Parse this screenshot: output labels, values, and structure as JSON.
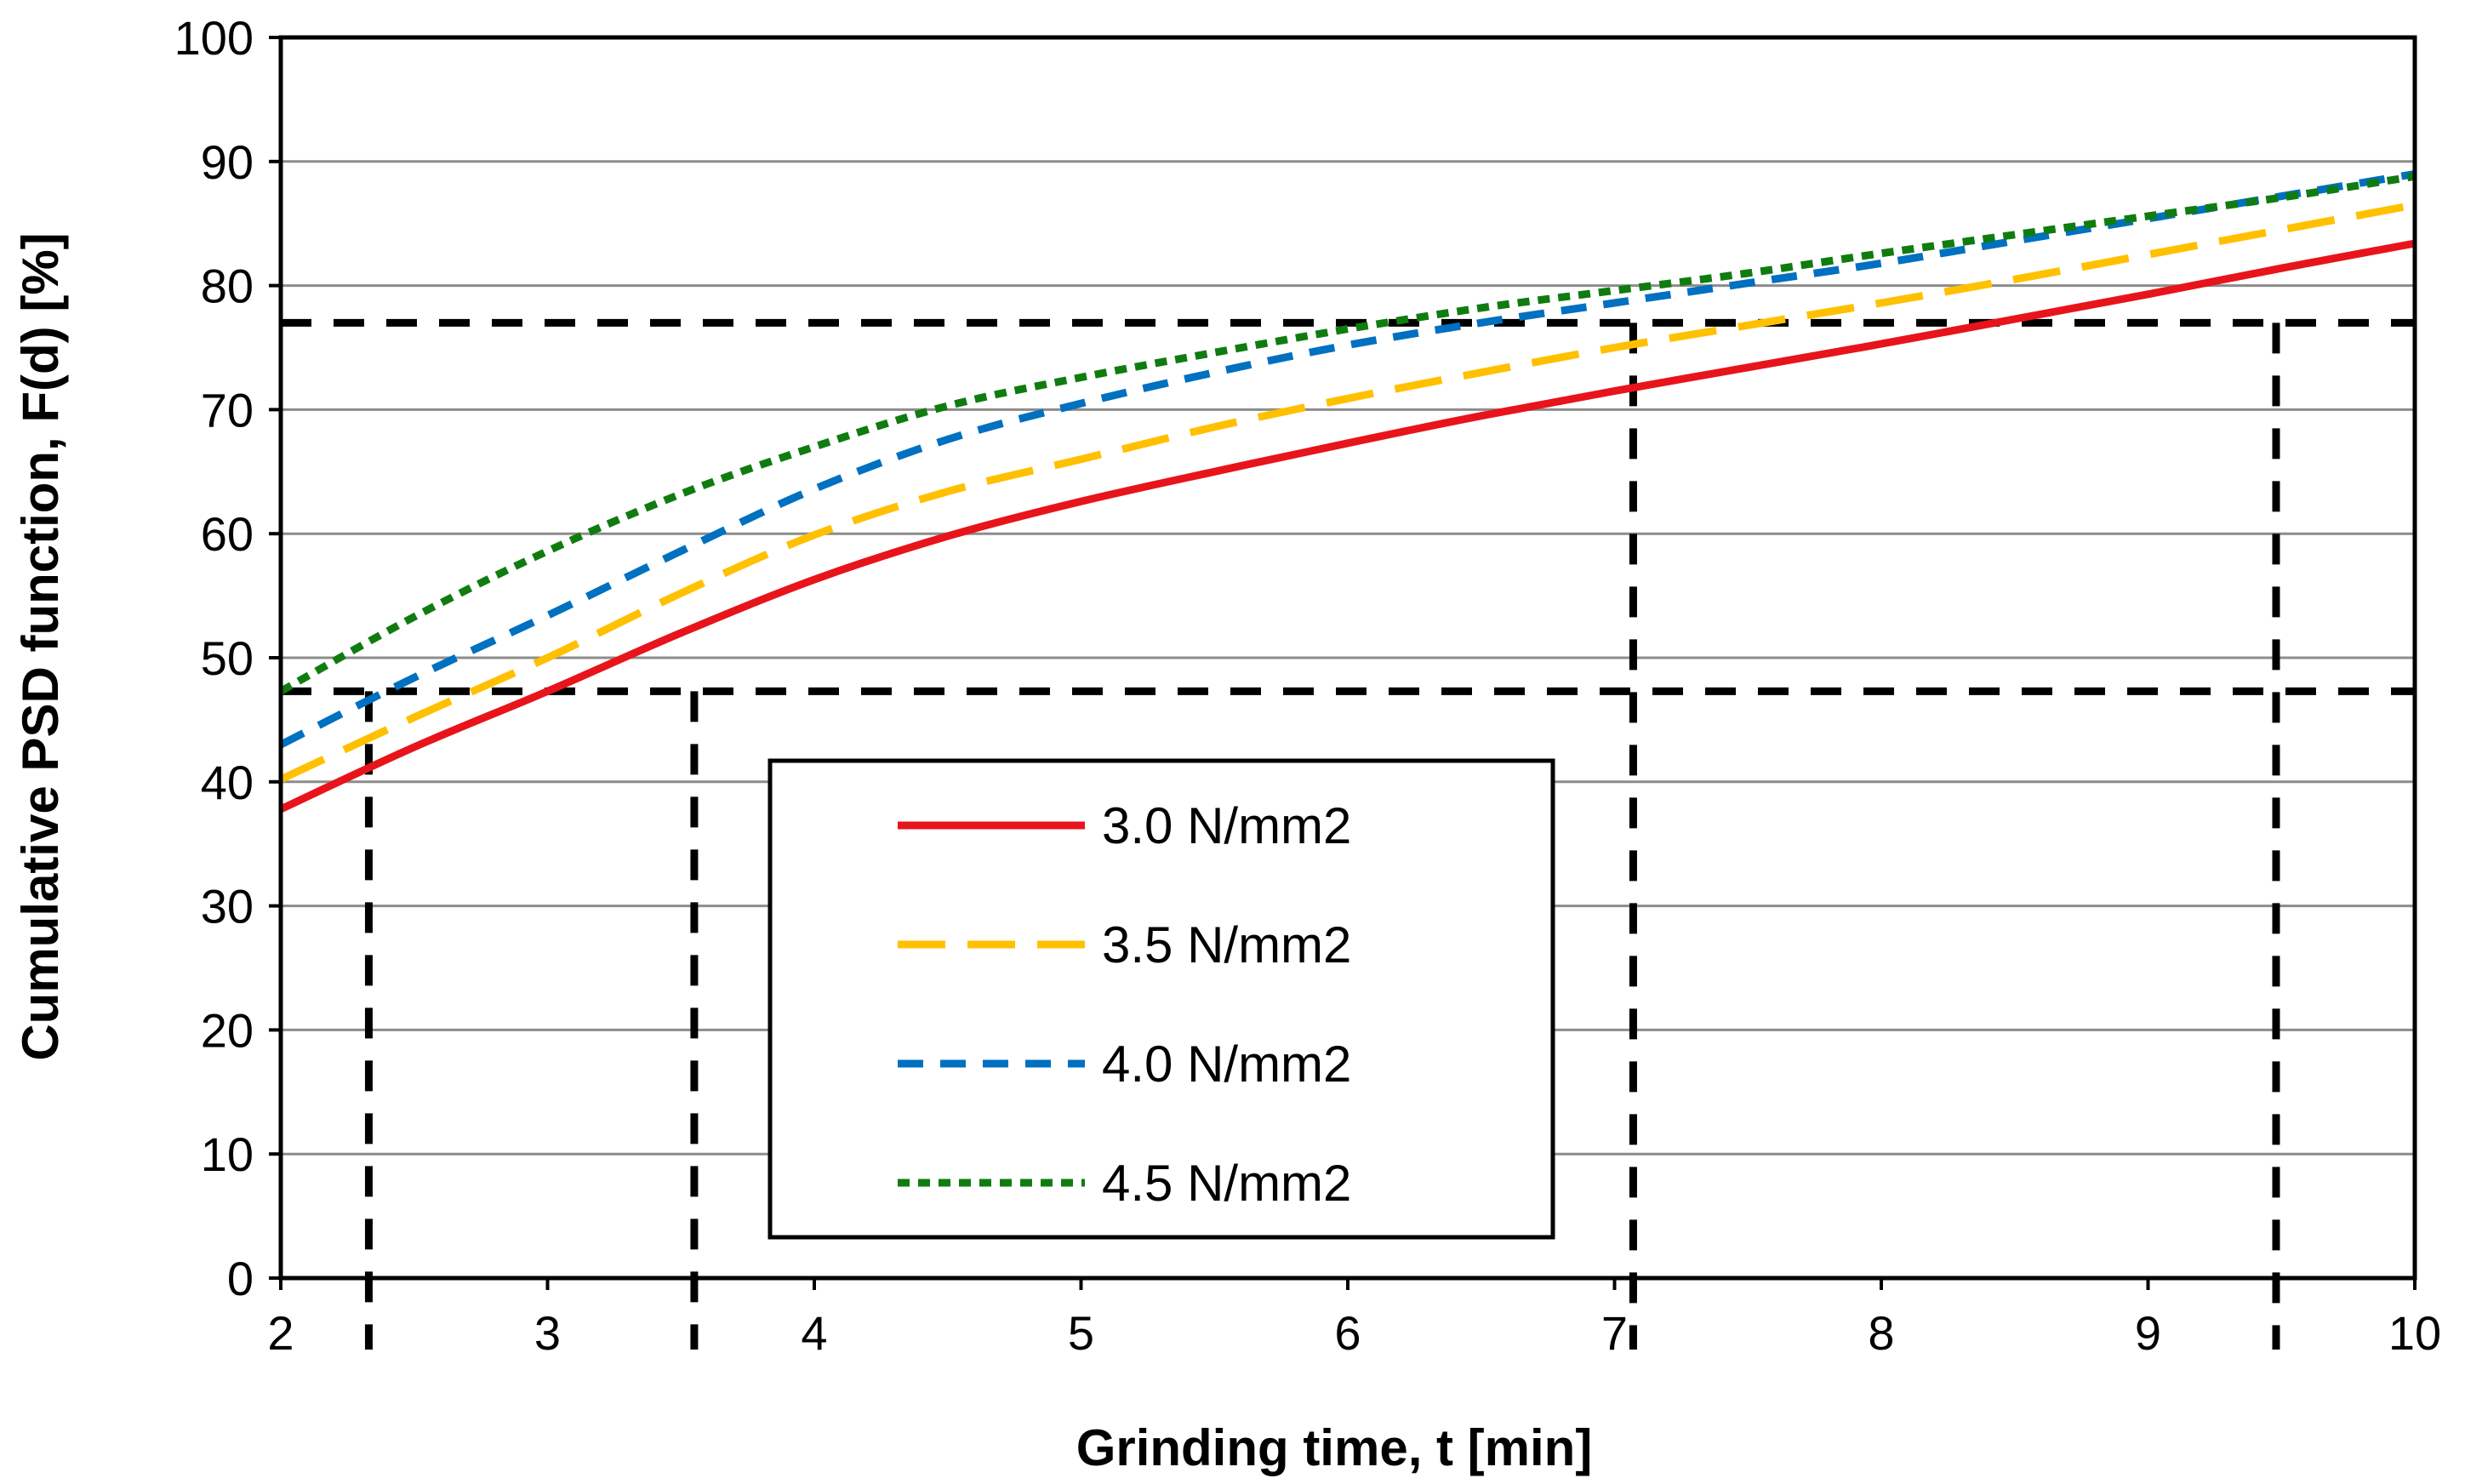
{
  "chart_data": {
    "type": "line",
    "title": "",
    "xlabel": "Grinding time, t [min]",
    "ylabel": "Cumulative PSD function, F(d) [%]",
    "xlim": [
      2,
      10
    ],
    "ylim": [
      0,
      100
    ],
    "xticks": [
      2,
      3,
      4,
      5,
      6,
      7,
      8,
      9,
      10
    ],
    "yticks": [
      0,
      10,
      20,
      30,
      40,
      50,
      60,
      70,
      80,
      90,
      100
    ],
    "grid": "horizontal",
    "legend_position": "center",
    "series": [
      {
        "name": "3.0 N/mm2",
        "color": "#e8141b",
        "style": "solid",
        "x": [
          2,
          2.5,
          3,
          3.5,
          4,
          4.5,
          5,
          5.5,
          6,
          6.5,
          7,
          7.5,
          8,
          8.5,
          9,
          9.5,
          10
        ],
        "y": [
          37.8,
          42.8,
          47.3,
          52.0,
          56.3,
          59.8,
          62.6,
          65.0,
          67.3,
          69.5,
          71.5,
          73.4,
          75.3,
          77.3,
          79.3,
          81.4,
          83.4
        ]
      },
      {
        "name": "3.5 N/mm2",
        "color": "#ffc000",
        "style": "long-dash",
        "x": [
          2,
          2.5,
          3,
          3.5,
          4,
          4.5,
          5,
          5.5,
          6,
          6.5,
          7,
          7.5,
          8,
          8.5,
          9,
          9.5,
          10
        ],
        "y": [
          40.2,
          45.2,
          50.0,
          55.2,
          59.9,
          63.4,
          66.0,
          68.6,
          70.9,
          73.0,
          75.0,
          76.8,
          78.6,
          80.5,
          82.5,
          84.5,
          86.5
        ]
      },
      {
        "name": "4.0 N/mm2",
        "color": "#0070c0",
        "style": "dash",
        "x": [
          2,
          2.5,
          3,
          3.5,
          4,
          4.5,
          5,
          5.5,
          6,
          6.5,
          7,
          7.5,
          8,
          8.5,
          9,
          9.5,
          10
        ],
        "y": [
          43.0,
          48.4,
          53.4,
          58.6,
          63.6,
          67.6,
          70.5,
          73.0,
          75.2,
          77.0,
          78.6,
          80.2,
          81.8,
          83.6,
          85.4,
          87.2,
          89.0
        ]
      },
      {
        "name": "4.5 N/mm2",
        "color": "#107c10",
        "style": "dot",
        "x": [
          2,
          2.5,
          3,
          3.5,
          4,
          4.5,
          5,
          5.5,
          6,
          6.5,
          7,
          7.5,
          8,
          8.5,
          9,
          9.5,
          10
        ],
        "y": [
          47.3,
          53.3,
          58.6,
          63.2,
          67.0,
          70.3,
          72.6,
          74.6,
          76.5,
          78.2,
          79.6,
          81.0,
          82.6,
          84.1,
          85.6,
          87.1,
          88.8
        ]
      }
    ],
    "reference_lines": {
      "horizontal_y": [
        47.3,
        77.0
      ],
      "vertical_x": [
        2.33,
        3.55,
        7.07,
        9.48
      ]
    }
  }
}
